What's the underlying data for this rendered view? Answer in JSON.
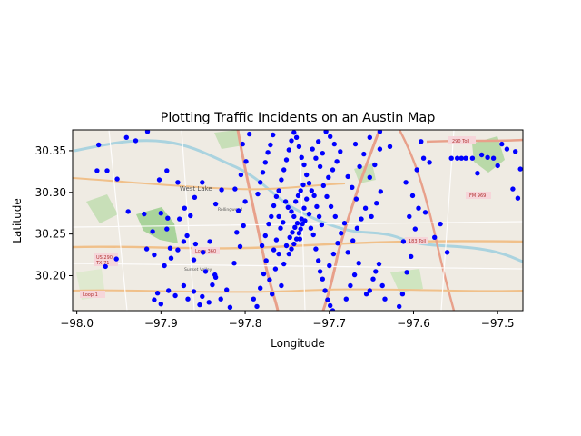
{
  "chart_data": {
    "type": "scatter",
    "title": "Plotting Traffic Incidents on an Austin Map",
    "xlabel": "Longitude",
    "ylabel": "Latitude",
    "xlim": [
      -98.005,
      -97.47
    ],
    "ylim": [
      30.375,
      30.158
    ],
    "xticks": [
      -98.0,
      -97.9,
      -97.8,
      -97.7,
      -97.6,
      -97.5
    ],
    "xtick_labels": [
      "−98.0",
      "−97.9",
      "−97.8",
      "−97.7",
      "−97.6",
      "−97.5"
    ],
    "yticks": [
      30.2,
      30.25,
      30.3,
      30.35
    ],
    "ytick_labels": [
      "30.20",
      "30.25",
      "30.30",
      "30.35"
    ],
    "grid": false,
    "background": "OpenStreetMap basemap of Austin",
    "marker_color": "#0000ff",
    "series": [
      {
        "name": "",
        "points": [
          [
            -97.966,
            30.211
          ],
          [
            -97.953,
            30.22
          ],
          [
            -97.939,
            30.277
          ],
          [
            -97.976,
            30.326
          ],
          [
            -97.964,
            30.326
          ],
          [
            -97.952,
            30.316
          ],
          [
            -97.974,
            30.357
          ],
          [
            -97.941,
            30.366
          ],
          [
            -97.908,
            30.171
          ],
          [
            -97.9,
            30.166
          ],
          [
            -97.904,
            30.179
          ],
          [
            -97.891,
            30.182
          ],
          [
            -97.883,
            30.176
          ],
          [
            -97.873,
            30.188
          ],
          [
            -97.868,
            30.172
          ],
          [
            -97.861,
            30.181
          ],
          [
            -97.854,
            30.165
          ],
          [
            -97.851,
            30.175
          ],
          [
            -97.843,
            30.168
          ],
          [
            -97.839,
            30.189
          ],
          [
            -97.835,
            30.198
          ],
          [
            -97.829,
            30.172
          ],
          [
            -97.822,
            30.183
          ],
          [
            -97.818,
            30.162
          ],
          [
            -97.896,
            30.212
          ],
          [
            -97.888,
            30.221
          ],
          [
            -97.88,
            30.231
          ],
          [
            -97.889,
            30.233
          ],
          [
            -97.873,
            30.241
          ],
          [
            -97.859,
            30.238
          ],
          [
            -97.861,
            30.219
          ],
          [
            -97.85,
            30.228
          ],
          [
            -97.842,
            30.241
          ],
          [
            -97.847,
            30.205
          ],
          [
            -97.836,
            30.201
          ],
          [
            -97.908,
            30.225
          ],
          [
            -97.893,
            30.256
          ],
          [
            -97.9,
            30.275
          ],
          [
            -97.892,
            30.269
          ],
          [
            -97.878,
            30.268
          ],
          [
            -97.872,
            30.281
          ],
          [
            -97.869,
            30.248
          ],
          [
            -97.865,
            30.272
          ],
          [
            -97.86,
            30.294
          ],
          [
            -97.835,
            30.286
          ],
          [
            -97.828,
            30.303
          ],
          [
            -97.902,
            30.315
          ],
          [
            -97.893,
            30.326
          ],
          [
            -97.88,
            30.312
          ],
          [
            -97.851,
            30.312
          ],
          [
            -97.92,
            30.274
          ],
          [
            -97.917,
            30.232
          ],
          [
            -97.91,
            30.253
          ],
          [
            -97.93,
            30.362
          ],
          [
            -97.916,
            30.373
          ],
          [
            -97.813,
            30.215
          ],
          [
            -97.806,
            30.235
          ],
          [
            -97.81,
            30.252
          ],
          [
            -97.802,
            30.26
          ],
          [
            -97.808,
            30.278
          ],
          [
            -97.8,
            30.289
          ],
          [
            -97.812,
            30.304
          ],
          [
            -97.805,
            30.321
          ],
          [
            -97.799,
            30.337
          ],
          [
            -97.803,
            30.358
          ],
          [
            -97.795,
            30.37
          ],
          [
            -97.79,
            30.172
          ],
          [
            -97.786,
            30.163
          ],
          [
            -97.782,
            30.185
          ],
          [
            -97.778,
            30.202
          ],
          [
            -97.775,
            30.218
          ],
          [
            -97.771,
            30.195
          ],
          [
            -97.768,
            30.178
          ],
          [
            -97.764,
            30.208
          ],
          [
            -97.76,
            30.226
          ],
          [
            -97.757,
            30.188
          ],
          [
            -97.754,
            30.214
          ],
          [
            -97.751,
            30.236
          ],
          [
            -97.747,
            30.246
          ],
          [
            -97.744,
            30.252
          ],
          [
            -97.741,
            30.258
          ],
          [
            -97.738,
            30.263
          ],
          [
            -97.735,
            30.244
          ],
          [
            -97.733,
            30.268
          ],
          [
            -97.73,
            30.281
          ],
          [
            -97.727,
            30.292
          ],
          [
            -97.724,
            30.274
          ],
          [
            -97.722,
            30.257
          ],
          [
            -97.719,
            30.249
          ],
          [
            -97.716,
            30.232
          ],
          [
            -97.713,
            30.218
          ],
          [
            -97.711,
            30.205
          ],
          [
            -97.708,
            30.196
          ],
          [
            -97.705,
            30.182
          ],
          [
            -97.702,
            30.171
          ],
          [
            -97.699,
            30.164
          ],
          [
            -97.696,
            30.158
          ],
          [
            -97.78,
            30.236
          ],
          [
            -97.776,
            30.248
          ],
          [
            -97.772,
            30.262
          ],
          [
            -97.769,
            30.271
          ],
          [
            -97.766,
            30.284
          ],
          [
            -97.763,
            30.295
          ],
          [
            -97.76,
            30.302
          ],
          [
            -97.757,
            30.315
          ],
          [
            -97.754,
            30.327
          ],
          [
            -97.751,
            30.339
          ],
          [
            -97.748,
            30.351
          ],
          [
            -97.745,
            30.362
          ],
          [
            -97.742,
            30.372
          ],
          [
            -97.739,
            30.366
          ],
          [
            -97.736,
            30.355
          ],
          [
            -97.733,
            30.342
          ],
          [
            -97.73,
            30.333
          ],
          [
            -97.727,
            30.321
          ],
          [
            -97.724,
            30.311
          ],
          [
            -97.721,
            30.302
          ],
          [
            -97.718,
            30.296
          ],
          [
            -97.715,
            30.283
          ],
          [
            -97.712,
            30.271
          ],
          [
            -97.709,
            30.261
          ],
          [
            -97.785,
            30.298
          ],
          [
            -97.782,
            30.312
          ],
          [
            -97.779,
            30.324
          ],
          [
            -97.776,
            30.336
          ],
          [
            -97.773,
            30.348
          ],
          [
            -97.77,
            30.357
          ],
          [
            -97.767,
            30.369
          ],
          [
            -97.748,
            30.226
          ],
          [
            -97.745,
            30.232
          ],
          [
            -97.742,
            30.238
          ],
          [
            -97.739,
            30.244
          ],
          [
            -97.736,
            30.251
          ],
          [
            -97.734,
            30.256
          ],
          [
            -97.732,
            30.262
          ],
          [
            -97.729,
            30.266
          ],
          [
            -97.742,
            30.271
          ],
          [
            -97.745,
            30.277
          ],
          [
            -97.749,
            30.282
          ],
          [
            -97.752,
            30.289
          ],
          [
            -97.74,
            30.289
          ],
          [
            -97.737,
            30.296
          ],
          [
            -97.734,
            30.302
          ],
          [
            -97.731,
            30.309
          ],
          [
            -97.758,
            30.257
          ],
          [
            -97.755,
            30.264
          ],
          [
            -97.76,
            30.271
          ],
          [
            -97.763,
            30.243
          ],
          [
            -97.766,
            30.231
          ],
          [
            -97.7,
            30.212
          ],
          [
            -97.695,
            30.226
          ],
          [
            -97.69,
            30.239
          ],
          [
            -97.686,
            30.251
          ],
          [
            -97.682,
            30.263
          ],
          [
            -97.693,
            30.271
          ],
          [
            -97.698,
            30.283
          ],
          [
            -97.703,
            30.295
          ],
          [
            -97.707,
            30.308
          ],
          [
            -97.701,
            30.318
          ],
          [
            -97.696,
            30.327
          ],
          [
            -97.691,
            30.337
          ],
          [
            -97.687,
            30.349
          ],
          [
            -97.694,
            30.358
          ],
          [
            -97.699,
            30.367
          ],
          [
            -97.704,
            30.373
          ],
          [
            -97.711,
            30.331
          ],
          [
            -97.716,
            30.341
          ],
          [
            -97.72,
            30.352
          ],
          [
            -97.713,
            30.361
          ],
          [
            -97.708,
            30.347
          ],
          [
            -97.68,
            30.172
          ],
          [
            -97.675,
            30.188
          ],
          [
            -97.67,
            30.201
          ],
          [
            -97.665,
            30.215
          ],
          [
            -97.678,
            30.228
          ],
          [
            -97.672,
            30.242
          ],
          [
            -97.667,
            30.257
          ],
          [
            -97.662,
            30.268
          ],
          [
            -97.657,
            30.281
          ],
          [
            -97.668,
            30.292
          ],
          [
            -97.673,
            30.306
          ],
          [
            -97.678,
            30.319
          ],
          [
            -97.664,
            30.331
          ],
          [
            -97.659,
            30.346
          ],
          [
            -97.669,
            30.358
          ],
          [
            -97.652,
            30.182
          ],
          [
            -97.648,
            30.196
          ],
          [
            -97.645,
            30.205
          ],
          [
            -97.656,
            30.178
          ],
          [
            -97.641,
            30.214
          ],
          [
            -97.637,
            30.188
          ],
          [
            -97.634,
            30.172
          ],
          [
            -97.65,
            30.271
          ],
          [
            -97.644,
            30.287
          ],
          [
            -97.639,
            30.301
          ],
          [
            -97.652,
            30.318
          ],
          [
            -97.646,
            30.333
          ],
          [
            -97.64,
            30.352
          ],
          [
            -97.617,
            30.163
          ],
          [
            -97.613,
            30.178
          ],
          [
            -97.608,
            30.204
          ],
          [
            -97.603,
            30.223
          ],
          [
            -97.612,
            30.241
          ],
          [
            -97.598,
            30.256
          ],
          [
            -97.605,
            30.271
          ],
          [
            -97.594,
            30.281
          ],
          [
            -97.601,
            30.296
          ],
          [
            -97.609,
            30.312
          ],
          [
            -97.596,
            30.327
          ],
          [
            -97.588,
            30.341
          ],
          [
            -97.581,
            30.336
          ],
          [
            -97.575,
            30.246
          ],
          [
            -97.586,
            30.276
          ],
          [
            -97.591,
            30.361
          ],
          [
            -97.568,
            30.262
          ],
          [
            -97.56,
            30.228
          ],
          [
            -97.555,
            30.341
          ],
          [
            -97.548,
            30.341
          ],
          [
            -97.543,
            30.341
          ],
          [
            -97.538,
            30.341
          ],
          [
            -97.53,
            30.341
          ],
          [
            -97.524,
            30.323
          ],
          [
            -97.519,
            30.345
          ],
          [
            -97.512,
            30.342
          ],
          [
            -97.505,
            30.341
          ],
          [
            -97.5,
            30.332
          ],
          [
            -97.495,
            30.358
          ],
          [
            -97.489,
            30.352
          ],
          [
            -97.482,
            30.304
          ],
          [
            -97.476,
            30.293
          ],
          [
            -97.473,
            30.328
          ],
          [
            -97.479,
            30.349
          ],
          [
            -97.64,
            30.373
          ],
          [
            -97.652,
            30.366
          ],
          [
            -97.628,
            30.355
          ]
        ]
      }
    ]
  }
}
